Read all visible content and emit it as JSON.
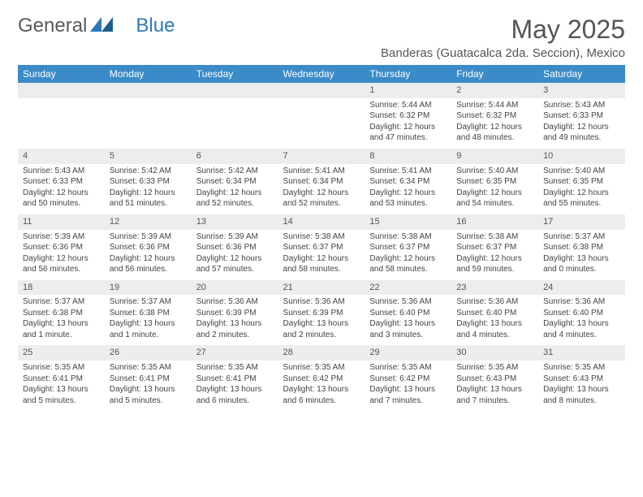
{
  "brand": {
    "part1": "General",
    "part2": "Blue"
  },
  "title": "May 2025",
  "location": "Banderas (Guatacalca 2da. Seccion), Mexico",
  "colors": {
    "header_bg": "#3b8bc8",
    "header_fg": "#ffffff",
    "daynum_bg": "#ededed",
    "text": "#444444",
    "brand_blue": "#2f78b7"
  },
  "weekdays": [
    "Sunday",
    "Monday",
    "Tuesday",
    "Wednesday",
    "Thursday",
    "Friday",
    "Saturday"
  ],
  "weeks": [
    [
      {
        "blank": true
      },
      {
        "blank": true
      },
      {
        "blank": true
      },
      {
        "blank": true
      },
      {
        "n": "1",
        "sr": "5:44 AM",
        "ss": "6:32 PM",
        "dl": "12 hours and 47 minutes."
      },
      {
        "n": "2",
        "sr": "5:44 AM",
        "ss": "6:32 PM",
        "dl": "12 hours and 48 minutes."
      },
      {
        "n": "3",
        "sr": "5:43 AM",
        "ss": "6:33 PM",
        "dl": "12 hours and 49 minutes."
      }
    ],
    [
      {
        "n": "4",
        "sr": "5:43 AM",
        "ss": "6:33 PM",
        "dl": "12 hours and 50 minutes."
      },
      {
        "n": "5",
        "sr": "5:42 AM",
        "ss": "6:33 PM",
        "dl": "12 hours and 51 minutes."
      },
      {
        "n": "6",
        "sr": "5:42 AM",
        "ss": "6:34 PM",
        "dl": "12 hours and 52 minutes."
      },
      {
        "n": "7",
        "sr": "5:41 AM",
        "ss": "6:34 PM",
        "dl": "12 hours and 52 minutes."
      },
      {
        "n": "8",
        "sr": "5:41 AM",
        "ss": "6:34 PM",
        "dl": "12 hours and 53 minutes."
      },
      {
        "n": "9",
        "sr": "5:40 AM",
        "ss": "6:35 PM",
        "dl": "12 hours and 54 minutes."
      },
      {
        "n": "10",
        "sr": "5:40 AM",
        "ss": "6:35 PM",
        "dl": "12 hours and 55 minutes."
      }
    ],
    [
      {
        "n": "11",
        "sr": "5:39 AM",
        "ss": "6:36 PM",
        "dl": "12 hours and 56 minutes."
      },
      {
        "n": "12",
        "sr": "5:39 AM",
        "ss": "6:36 PM",
        "dl": "12 hours and 56 minutes."
      },
      {
        "n": "13",
        "sr": "5:39 AM",
        "ss": "6:36 PM",
        "dl": "12 hours and 57 minutes."
      },
      {
        "n": "14",
        "sr": "5:38 AM",
        "ss": "6:37 PM",
        "dl": "12 hours and 58 minutes."
      },
      {
        "n": "15",
        "sr": "5:38 AM",
        "ss": "6:37 PM",
        "dl": "12 hours and 58 minutes."
      },
      {
        "n": "16",
        "sr": "5:38 AM",
        "ss": "6:37 PM",
        "dl": "12 hours and 59 minutes."
      },
      {
        "n": "17",
        "sr": "5:37 AM",
        "ss": "6:38 PM",
        "dl": "13 hours and 0 minutes."
      }
    ],
    [
      {
        "n": "18",
        "sr": "5:37 AM",
        "ss": "6:38 PM",
        "dl": "13 hours and 1 minute."
      },
      {
        "n": "19",
        "sr": "5:37 AM",
        "ss": "6:38 PM",
        "dl": "13 hours and 1 minute."
      },
      {
        "n": "20",
        "sr": "5:36 AM",
        "ss": "6:39 PM",
        "dl": "13 hours and 2 minutes."
      },
      {
        "n": "21",
        "sr": "5:36 AM",
        "ss": "6:39 PM",
        "dl": "13 hours and 2 minutes."
      },
      {
        "n": "22",
        "sr": "5:36 AM",
        "ss": "6:40 PM",
        "dl": "13 hours and 3 minutes."
      },
      {
        "n": "23",
        "sr": "5:36 AM",
        "ss": "6:40 PM",
        "dl": "13 hours and 4 minutes."
      },
      {
        "n": "24",
        "sr": "5:36 AM",
        "ss": "6:40 PM",
        "dl": "13 hours and 4 minutes."
      }
    ],
    [
      {
        "n": "25",
        "sr": "5:35 AM",
        "ss": "6:41 PM",
        "dl": "13 hours and 5 minutes."
      },
      {
        "n": "26",
        "sr": "5:35 AM",
        "ss": "6:41 PM",
        "dl": "13 hours and 5 minutes."
      },
      {
        "n": "27",
        "sr": "5:35 AM",
        "ss": "6:41 PM",
        "dl": "13 hours and 6 minutes."
      },
      {
        "n": "28",
        "sr": "5:35 AM",
        "ss": "6:42 PM",
        "dl": "13 hours and 6 minutes."
      },
      {
        "n": "29",
        "sr": "5:35 AM",
        "ss": "6:42 PM",
        "dl": "13 hours and 7 minutes."
      },
      {
        "n": "30",
        "sr": "5:35 AM",
        "ss": "6:43 PM",
        "dl": "13 hours and 7 minutes."
      },
      {
        "n": "31",
        "sr": "5:35 AM",
        "ss": "6:43 PM",
        "dl": "13 hours and 8 minutes."
      }
    ]
  ],
  "labels": {
    "sunrise": "Sunrise: ",
    "sunset": "Sunset: ",
    "daylight": "Daylight: "
  }
}
